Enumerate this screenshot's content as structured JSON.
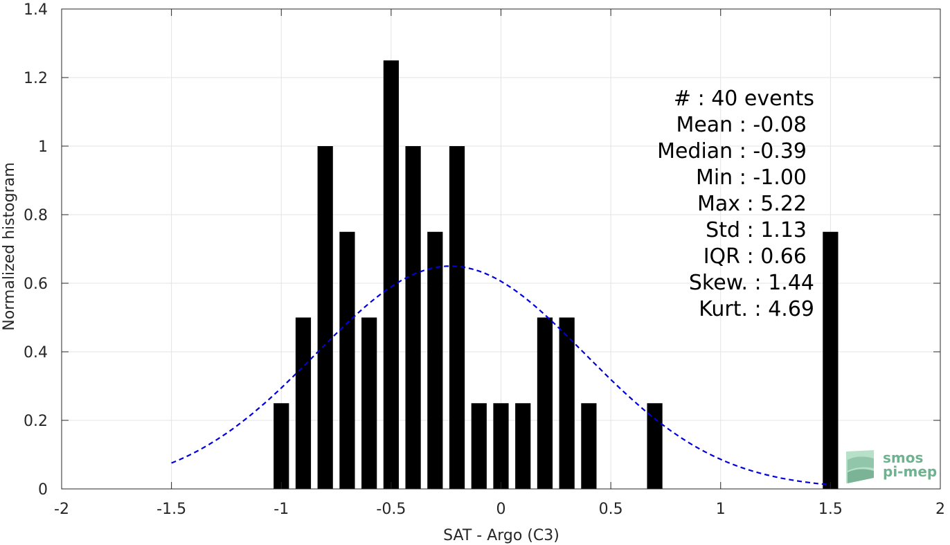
{
  "chart_data": {
    "type": "bar",
    "xlabel": "SAT - Argo (C3)",
    "ylabel": "Normalized histogram",
    "xlim": [
      -2,
      2
    ],
    "ylim": [
      0,
      1.4
    ],
    "xticks": [
      -2,
      -1.5,
      -1,
      -0.5,
      0,
      0.5,
      1,
      1.5,
      2
    ],
    "xtick_labels": [
      "-2",
      "-1.5",
      "-1",
      "-0.5",
      "0",
      "0.5",
      "1",
      "1.5",
      "2"
    ],
    "yticks": [
      0,
      0.2,
      0.4,
      0.6,
      0.8,
      1,
      1.2,
      1.4
    ],
    "ytick_labels": [
      "0",
      "0.2",
      "0.4",
      "0.6",
      "0.8",
      "1",
      "1.2",
      "1.4"
    ],
    "grid": true,
    "bar_color": "#000000",
    "bar_width": 0.07,
    "bars": {
      "x": [
        -1.0,
        -0.9,
        -0.8,
        -0.7,
        -0.6,
        -0.5,
        -0.4,
        -0.3,
        -0.2,
        -0.1,
        0.0,
        0.1,
        0.2,
        0.3,
        0.4,
        0.7,
        1.5
      ],
      "values": [
        0.25,
        0.5,
        1.0,
        0.75,
        0.5,
        1.25,
        1.0,
        0.75,
        1.0,
        0.25,
        0.25,
        0.25,
        0.5,
        0.5,
        0.25,
        0.25,
        0.75
      ]
    },
    "fit_curve": {
      "style": "dashed",
      "color": "#0000dd",
      "mean": -0.23,
      "std": 0.612,
      "peak": 0.65,
      "x_range": [
        -1.5,
        1.5
      ]
    }
  },
  "stats": {
    "lines": [
      "#  : 40 events",
      "Mean : -0.08",
      "Median : -0.39",
      "Min : -1.00",
      "Max : 5.22",
      "Std : 1.13",
      "IQR : 0.66",
      "Skew. : 1.44",
      "Kurt. : 4.69"
    ]
  },
  "logo": {
    "line1": "smos",
    "line2": "pi-mep",
    "color": "#6db38f"
  }
}
